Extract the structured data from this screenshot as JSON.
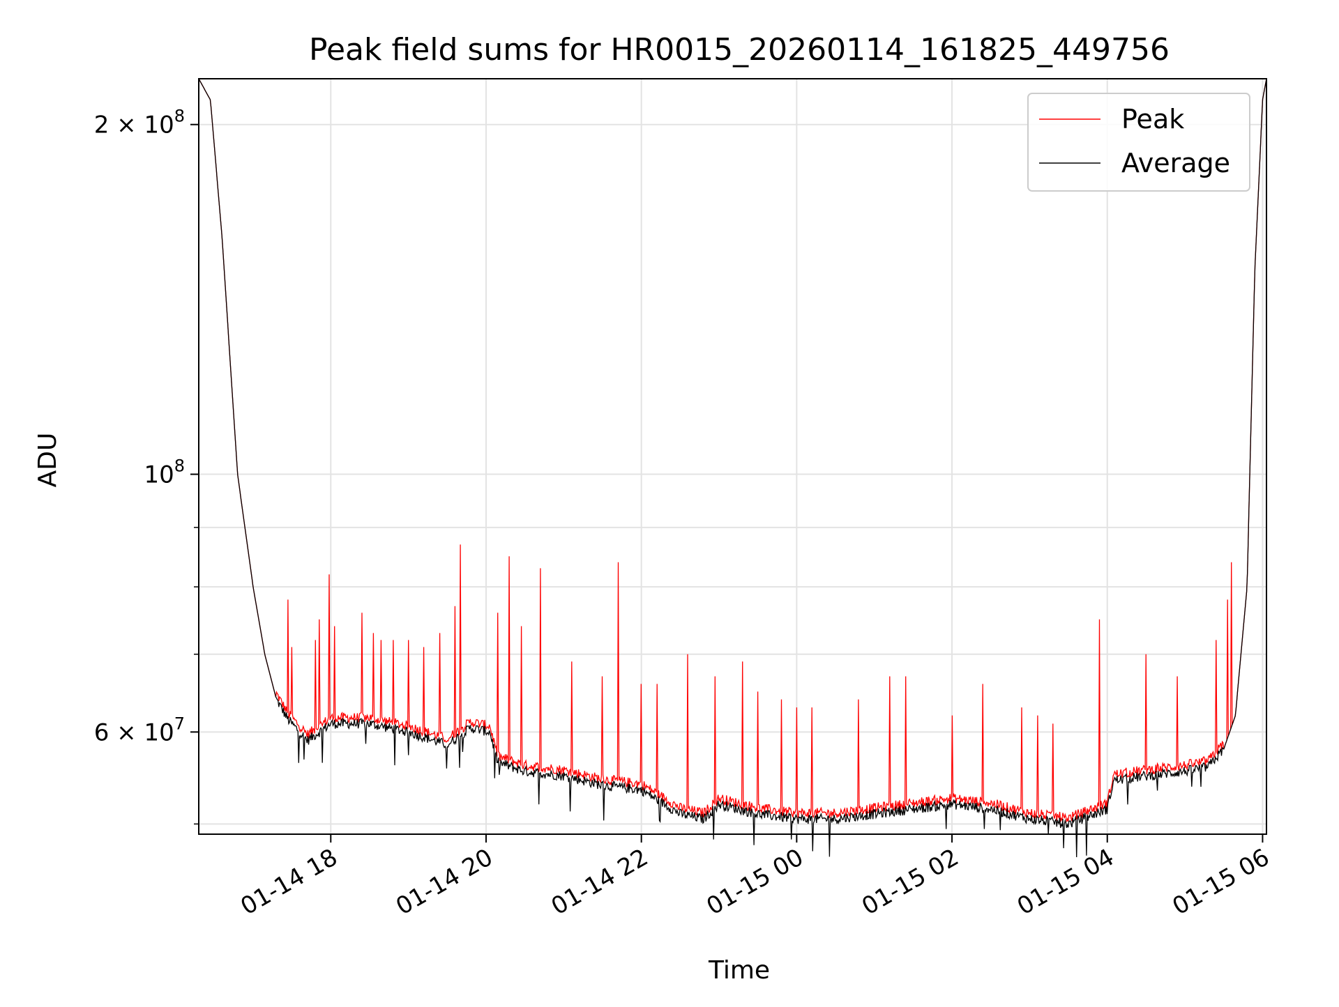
{
  "chart_data": {
    "type": "line",
    "title": "Peak field sums for HR0015_20260114_161825_449756",
    "xlabel": "Time",
    "ylabel": "ADU",
    "x_range_hours": [
      16.3,
      30.05
    ],
    "ylim": [
      49000000,
      219000000
    ],
    "yscale": "log",
    "grid": true,
    "legend_position": "upper-right",
    "x_ticks": [
      {
        "hour": 18,
        "label": "01-14 18"
      },
      {
        "hour": 20,
        "label": "01-14 20"
      },
      {
        "hour": 22,
        "label": "01-14 22"
      },
      {
        "hour": 24,
        "label": "01-15 00"
      },
      {
        "hour": 26,
        "label": "01-15 02"
      },
      {
        "hour": 28,
        "label": "01-15 04"
      },
      {
        "hour": 30,
        "label": "01-15 06"
      }
    ],
    "y_major_ticks": [
      {
        "value": 60000000,
        "mantissa": "6",
        "exponent": "7"
      },
      {
        "value": 100000000,
        "mantissa": "",
        "exponent": "8"
      },
      {
        "value": 200000000,
        "mantissa": "2",
        "exponent": "8"
      }
    ],
    "y_minor_ticks": [
      50000000,
      70000000,
      80000000,
      90000000
    ],
    "baseline_hours": [
      16.3,
      16.45,
      16.6,
      16.8,
      17.0,
      17.15,
      17.3,
      17.45,
      17.7,
      18.0,
      18.5,
      19.0,
      19.5,
      19.8,
      20.05,
      20.15,
      20.5,
      21.0,
      21.5,
      22.0,
      22.3,
      22.5,
      22.8,
      23.0,
      23.5,
      24.0,
      24.5,
      25.0,
      25.5,
      26.0,
      26.5,
      27.0,
      27.5,
      28.0,
      28.08,
      28.5,
      29.0,
      29.3,
      29.5,
      29.65,
      29.8,
      29.9,
      30.0,
      30.05
    ],
    "baseline_values": [
      219000000,
      210000000,
      160000000,
      100000000,
      80000000,
      70000000,
      64000000,
      61500000,
      59000000,
      61000000,
      61000000,
      60000000,
      58500000,
      60500000,
      60000000,
      56500000,
      55500000,
      55000000,
      54000000,
      53500000,
      52000000,
      51000000,
      50500000,
      52000000,
      51000000,
      50500000,
      50500000,
      51000000,
      51500000,
      52000000,
      51500000,
      50500000,
      50000000,
      51500000,
      54500000,
      55000000,
      55500000,
      56000000,
      58000000,
      62000000,
      80000000,
      150000000,
      210000000,
      219000000
    ],
    "series": [
      {
        "name": "Peak",
        "color": "#ff0000",
        "spikes": [
          {
            "hour": 17.45,
            "value": 78000000
          },
          {
            "hour": 17.5,
            "value": 71000000
          },
          {
            "hour": 17.8,
            "value": 72000000
          },
          {
            "hour": 17.85,
            "value": 75000000
          },
          {
            "hour": 17.98,
            "value": 82000000
          },
          {
            "hour": 18.05,
            "value": 74000000
          },
          {
            "hour": 18.4,
            "value": 76000000
          },
          {
            "hour": 18.55,
            "value": 73000000
          },
          {
            "hour": 18.65,
            "value": 72000000
          },
          {
            "hour": 18.8,
            "value": 72000000
          },
          {
            "hour": 19.0,
            "value": 72000000
          },
          {
            "hour": 19.2,
            "value": 71000000
          },
          {
            "hour": 19.4,
            "value": 73000000
          },
          {
            "hour": 19.6,
            "value": 77000000
          },
          {
            "hour": 19.67,
            "value": 87000000
          },
          {
            "hour": 20.15,
            "value": 76000000
          },
          {
            "hour": 20.3,
            "value": 85000000
          },
          {
            "hour": 20.45,
            "value": 74000000
          },
          {
            "hour": 20.7,
            "value": 83000000
          },
          {
            "hour": 21.1,
            "value": 69000000
          },
          {
            "hour": 21.5,
            "value": 67000000
          },
          {
            "hour": 21.7,
            "value": 84000000
          },
          {
            "hour": 22.0,
            "value": 66000000
          },
          {
            "hour": 22.2,
            "value": 66000000
          },
          {
            "hour": 22.6,
            "value": 70000000
          },
          {
            "hour": 22.95,
            "value": 67000000
          },
          {
            "hour": 23.3,
            "value": 69000000
          },
          {
            "hour": 23.5,
            "value": 65000000
          },
          {
            "hour": 23.8,
            "value": 64000000
          },
          {
            "hour": 24.0,
            "value": 63000000
          },
          {
            "hour": 24.2,
            "value": 63000000
          },
          {
            "hour": 24.8,
            "value": 64000000
          },
          {
            "hour": 25.2,
            "value": 67000000
          },
          {
            "hour": 25.4,
            "value": 67000000
          },
          {
            "hour": 26.0,
            "value": 62000000
          },
          {
            "hour": 26.4,
            "value": 66000000
          },
          {
            "hour": 26.9,
            "value": 63000000
          },
          {
            "hour": 27.1,
            "value": 62000000
          },
          {
            "hour": 27.3,
            "value": 61000000
          },
          {
            "hour": 27.9,
            "value": 75000000
          },
          {
            "hour": 28.5,
            "value": 70000000
          },
          {
            "hour": 28.9,
            "value": 67000000
          },
          {
            "hour": 29.4,
            "value": 72000000
          },
          {
            "hour": 29.55,
            "value": 78000000
          },
          {
            "hour": 29.6,
            "value": 84000000
          }
        ]
      },
      {
        "name": "Average",
        "color": "#000000"
      }
    ]
  }
}
